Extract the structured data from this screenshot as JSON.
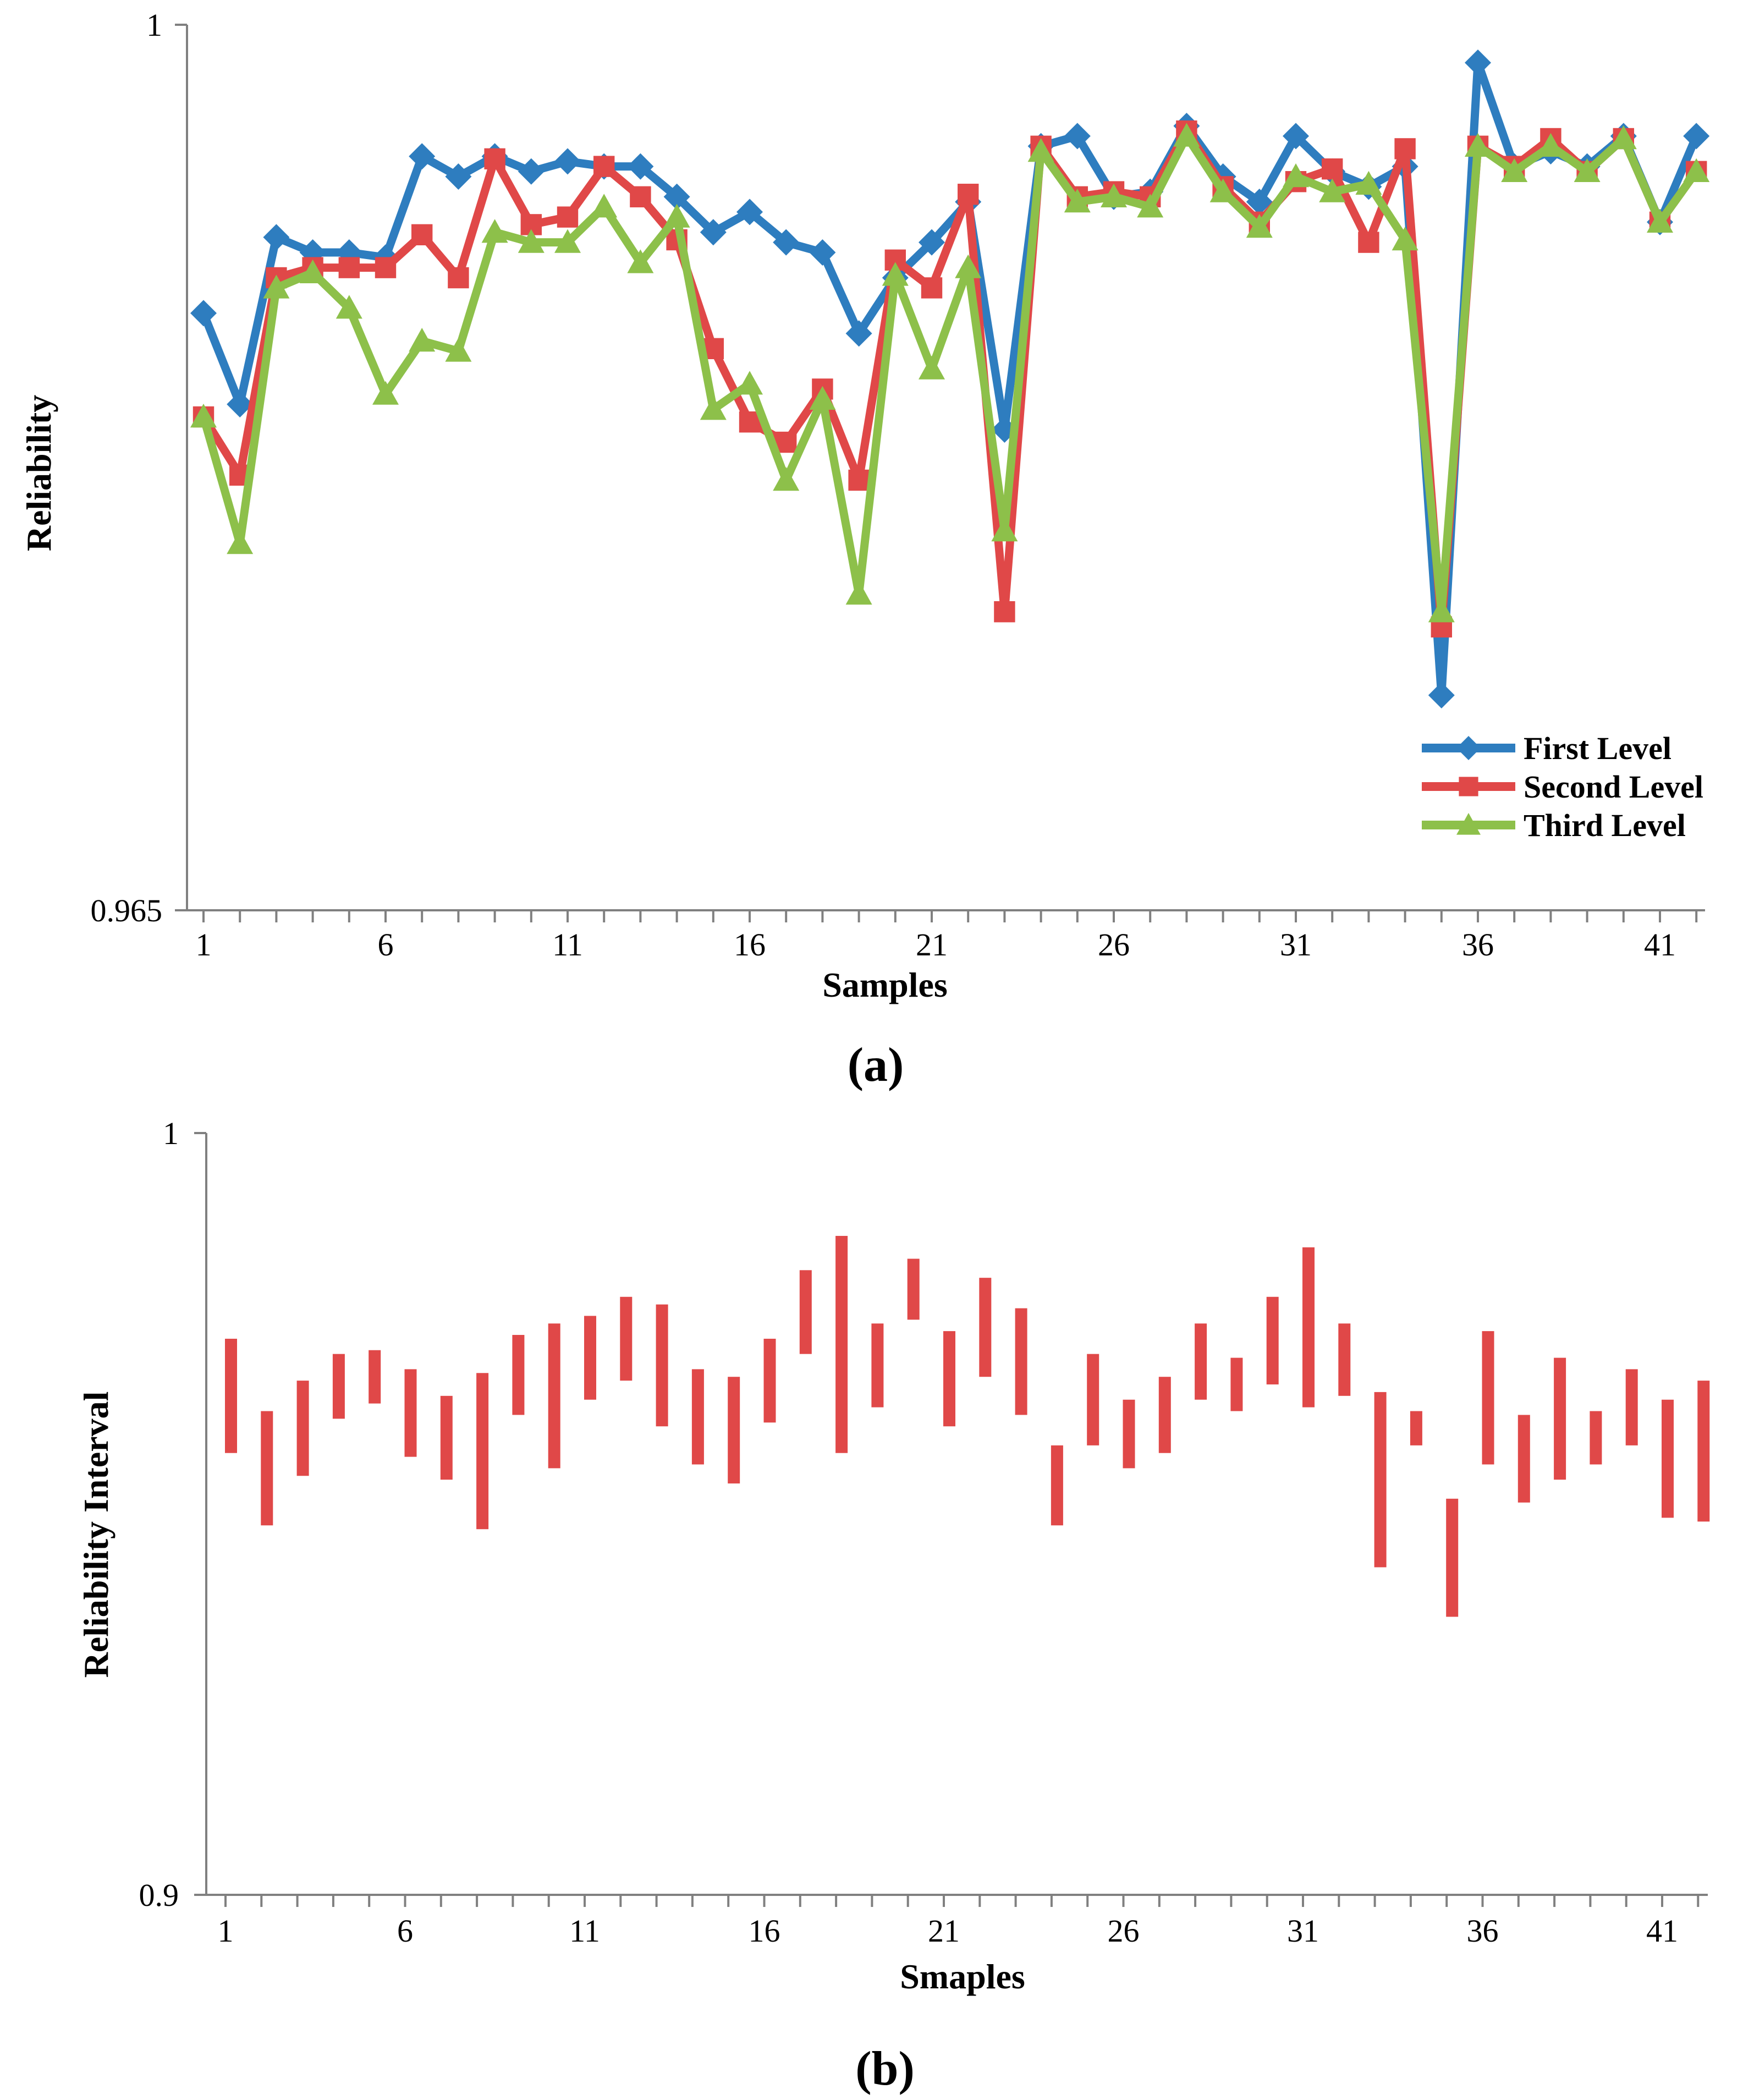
{
  "colors": {
    "first": "#2e7dbf",
    "second": "#e04848",
    "third": "#8dc04a",
    "interval": "#e04848",
    "axis": "#808080"
  },
  "panel_a_label": "(a)",
  "panel_b_label": "(b)",
  "chart_data": [
    {
      "type": "line",
      "ylabel": "Reliability",
      "xlabel": "Samples",
      "ylim": [
        0.965,
        1
      ],
      "y_tick_labels": [
        "0.965",
        "1"
      ],
      "x": [
        1,
        2,
        3,
        4,
        5,
        6,
        7,
        8,
        9,
        10,
        11,
        12,
        13,
        14,
        15,
        16,
        17,
        18,
        19,
        20,
        21,
        22,
        23,
        24,
        25,
        26,
        27,
        28,
        29,
        30,
        31,
        32,
        33,
        34,
        35,
        36,
        37,
        38,
        39,
        40,
        41,
        42
      ],
      "x_tick_labels": [
        "1",
        "6",
        "11",
        "16",
        "21",
        "26",
        "31",
        "36",
        "41"
      ],
      "legend_position": "bottom-right",
      "series": [
        {
          "name": "First Level",
          "marker": "diamond",
          "values": [
            0.9886,
            0.985,
            0.9916,
            0.991,
            0.991,
            0.9908,
            0.9948,
            0.994,
            0.9948,
            0.9942,
            0.9946,
            0.9944,
            0.9944,
            0.9932,
            0.9918,
            0.9926,
            0.9914,
            0.991,
            0.9878,
            0.99,
            0.9914,
            0.993,
            0.984,
            0.9952,
            0.9956,
            0.9932,
            0.9934,
            0.996,
            0.994,
            0.993,
            0.9956,
            0.9942,
            0.9936,
            0.9944,
            0.9735,
            0.9985,
            0.9944,
            0.995,
            0.9944,
            0.9956,
            0.9922,
            0.9956
          ]
        },
        {
          "name": "Second Level",
          "marker": "square",
          "values": [
            0.9845,
            0.9822,
            0.99,
            0.9904,
            0.9904,
            0.9904,
            0.9917,
            0.99,
            0.9947,
            0.9921,
            0.9924,
            0.9944,
            0.9932,
            0.9915,
            0.9872,
            0.9843,
            0.9835,
            0.9856,
            0.982,
            0.9907,
            0.9896,
            0.9933,
            0.9768,
            0.9952,
            0.9932,
            0.9934,
            0.9932,
            0.9958,
            0.9936,
            0.9922,
            0.9938,
            0.9943,
            0.9914,
            0.9951,
            0.9762,
            0.9952,
            0.9944,
            0.9955,
            0.9942,
            0.9955,
            0.9922,
            0.9942
          ]
        },
        {
          "name": "Third Level",
          "marker": "triangle",
          "values": [
            0.9845,
            0.9795,
            0.9896,
            0.9902,
            0.9888,
            0.9854,
            0.9875,
            0.9871,
            0.9918,
            0.9914,
            0.9914,
            0.9928,
            0.9906,
            0.9924,
            0.9848,
            0.9858,
            0.982,
            0.9852,
            0.9775,
            0.9901,
            0.9864,
            0.9904,
            0.98,
            0.995,
            0.993,
            0.9932,
            0.9928,
            0.9956,
            0.9934,
            0.992,
            0.994,
            0.9934,
            0.9937,
            0.9915,
            0.9768,
            0.9952,
            0.9942,
            0.9952,
            0.9942,
            0.9955,
            0.9922,
            0.9942
          ]
        }
      ]
    },
    {
      "type": "interval",
      "ylabel": "Reliability Interval",
      "xlabel": "Smaples",
      "ylim": [
        0.9,
        1
      ],
      "y_tick_labels": [
        "0.9",
        "1"
      ],
      "x": [
        1,
        2,
        3,
        4,
        5,
        6,
        7,
        8,
        9,
        10,
        11,
        12,
        13,
        14,
        15,
        16,
        17,
        18,
        19,
        20,
        21,
        22,
        23,
        24,
        25,
        26,
        27,
        28,
        29,
        30,
        31,
        32,
        33,
        34,
        35,
        36,
        37,
        38,
        39,
        40,
        41,
        42
      ],
      "x_tick_labels": [
        "1",
        "6",
        "11",
        "16",
        "21",
        "26",
        "31",
        "36",
        "41"
      ],
      "intervals": [
        [
          0.958,
          0.973
        ],
        [
          0.9485,
          0.9635
        ],
        [
          0.955,
          0.9675
        ],
        [
          0.9625,
          0.971
        ],
        [
          0.9645,
          0.9715
        ],
        [
          0.9575,
          0.969
        ],
        [
          0.9545,
          0.9655
        ],
        [
          0.948,
          0.9685
        ],
        [
          0.963,
          0.9735
        ],
        [
          0.956,
          0.975
        ],
        [
          0.965,
          0.976
        ],
        [
          0.9675,
          0.9785
        ],
        [
          0.9615,
          0.9775
        ],
        [
          0.9565,
          0.969
        ],
        [
          0.954,
          0.968
        ],
        [
          0.962,
          0.973
        ],
        [
          0.971,
          0.982
        ],
        [
          0.958,
          0.9865
        ],
        [
          0.964,
          0.975
        ],
        [
          0.9755,
          0.9835
        ],
        [
          0.9615,
          0.974
        ],
        [
          0.968,
          0.981
        ],
        [
          0.963,
          0.977
        ],
        [
          0.9485,
          0.959
        ],
        [
          0.959,
          0.971
        ],
        [
          0.956,
          0.965
        ],
        [
          0.958,
          0.968
        ],
        [
          0.965,
          0.975
        ],
        [
          0.9635,
          0.9705
        ],
        [
          0.967,
          0.9785
        ],
        [
          0.964,
          0.985
        ],
        [
          0.9655,
          0.975
        ],
        [
          0.943,
          0.966
        ],
        [
          0.959,
          0.9635
        ],
        [
          0.9365,
          0.952
        ],
        [
          0.9565,
          0.974
        ],
        [
          0.9515,
          0.963
        ],
        [
          0.9545,
          0.9705
        ],
        [
          0.9565,
          0.9635
        ],
        [
          0.959,
          0.969
        ],
        [
          0.9495,
          0.965
        ],
        [
          0.949,
          0.9675
        ]
      ]
    }
  ]
}
